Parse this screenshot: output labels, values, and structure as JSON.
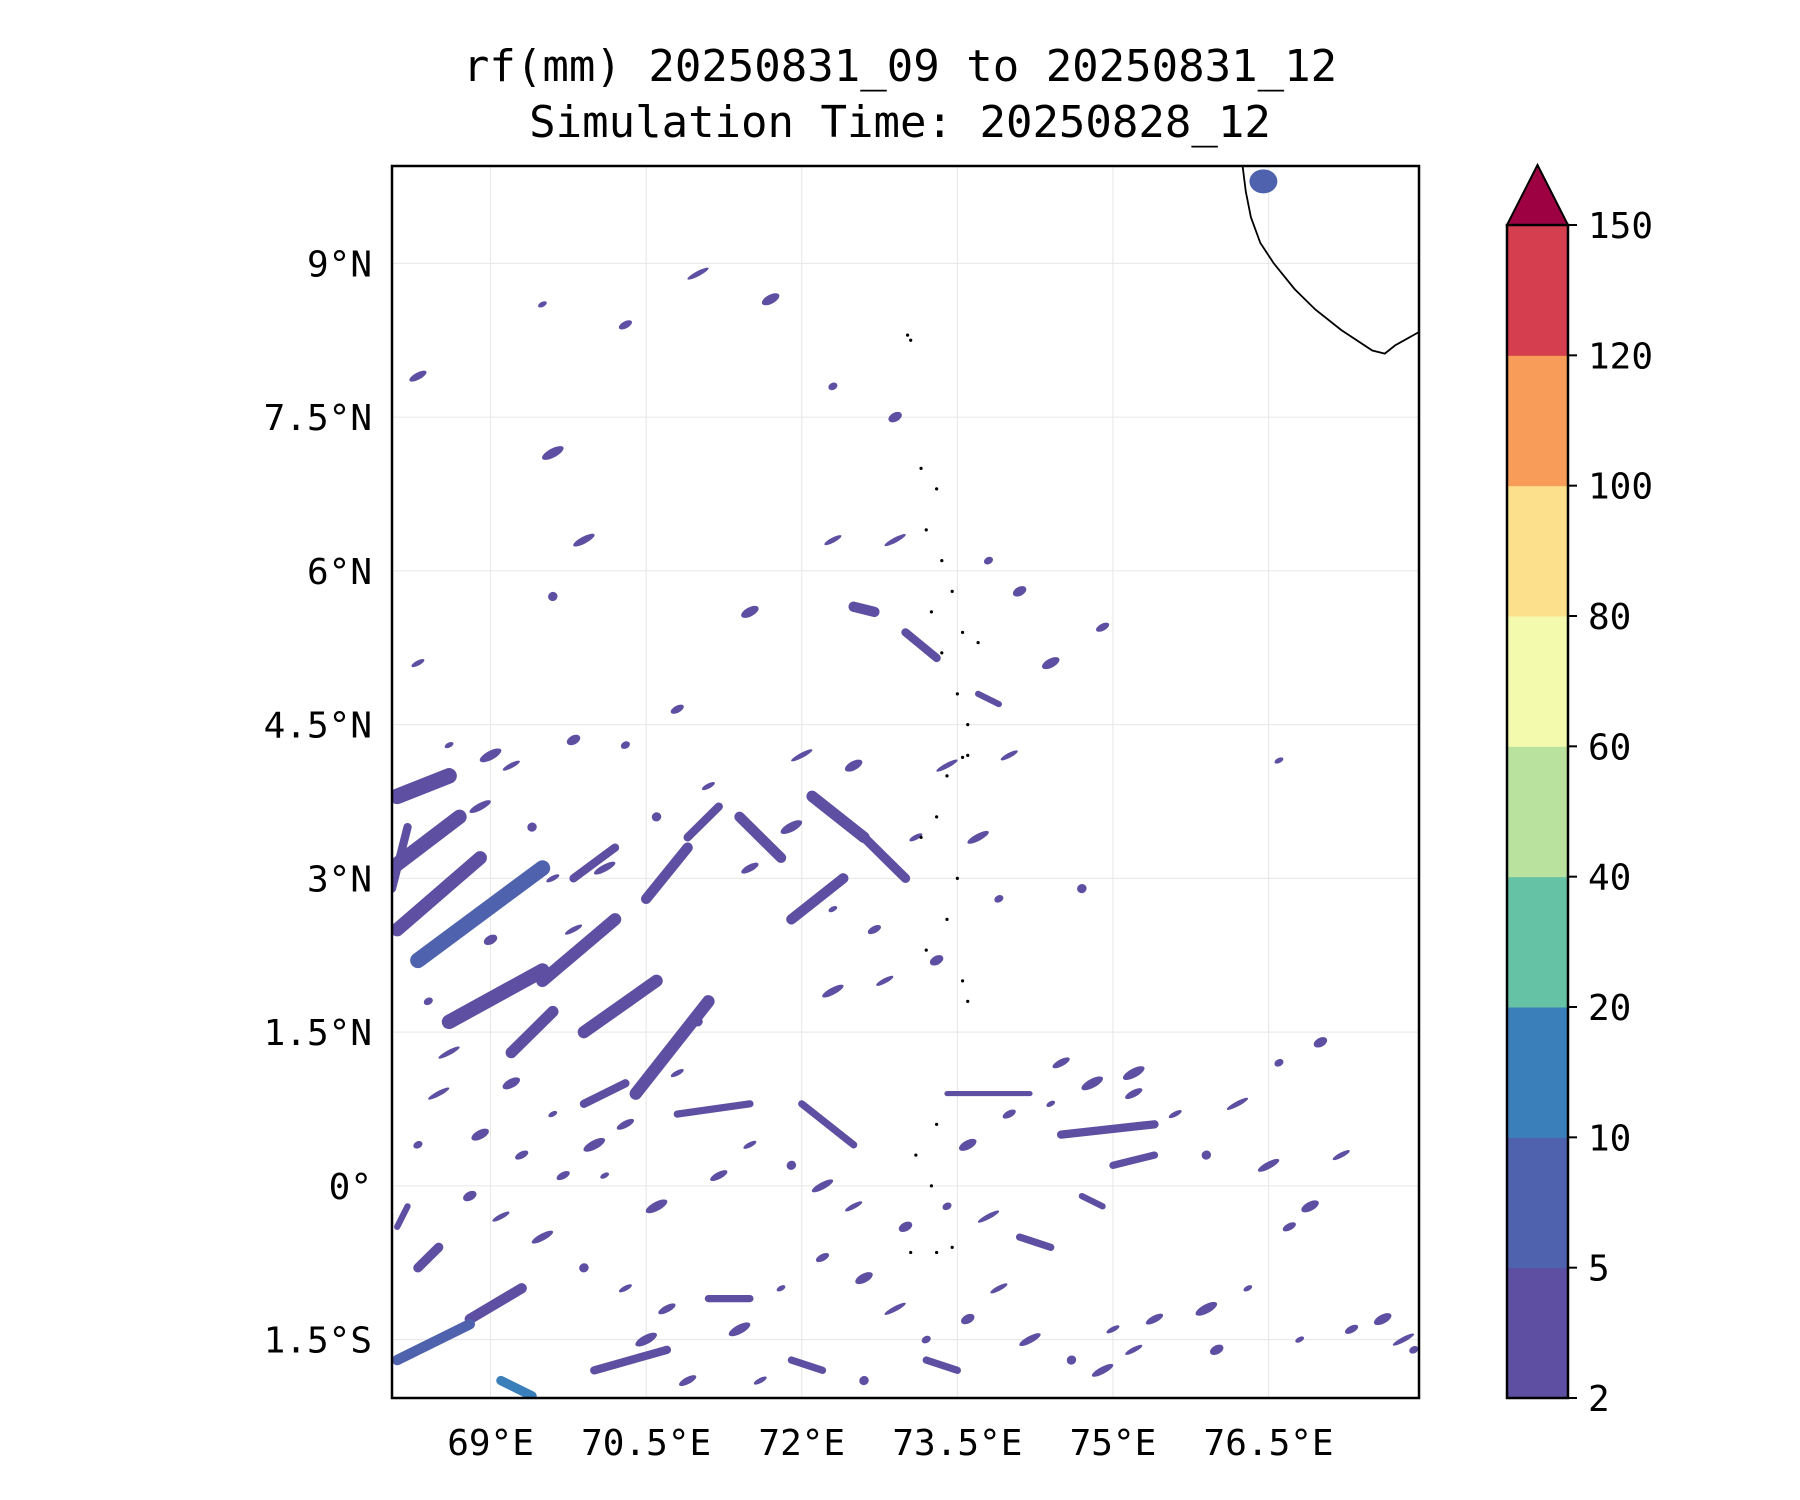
{
  "title": {
    "line1": "rf(mm) 20250831_09 to 20250831_12",
    "line2": "Simulation Time: 20250828_12"
  },
  "map": {
    "lon_range": [
      68.05,
      77.95
    ],
    "lat_range": [
      -2.07,
      9.95
    ],
    "lon_ticks": [
      {
        "value": 69.0,
        "label": "69°E"
      },
      {
        "value": 70.5,
        "label": "70.5°E"
      },
      {
        "value": 72.0,
        "label": "72°E"
      },
      {
        "value": 73.5,
        "label": "73.5°E"
      },
      {
        "value": 75.0,
        "label": "75°E"
      },
      {
        "value": 76.5,
        "label": "76.5°E"
      }
    ],
    "lat_ticks": [
      {
        "value": 9.0,
        "label": "9°N"
      },
      {
        "value": 7.5,
        "label": "7.5°N"
      },
      {
        "value": 6.0,
        "label": "6°N"
      },
      {
        "value": 4.5,
        "label": "4.5°N"
      },
      {
        "value": 3.0,
        "label": "3°N"
      },
      {
        "value": 1.5,
        "label": "1.5°N"
      },
      {
        "value": 0.0,
        "label": "0°"
      },
      {
        "value": -1.5,
        "label": "1.5°S"
      }
    ],
    "gridlines": true,
    "coastline_india": [
      [
        76.25,
        9.95
      ],
      [
        76.28,
        9.7
      ],
      [
        76.33,
        9.45
      ],
      [
        76.42,
        9.2
      ],
      [
        76.55,
        9.0
      ],
      [
        76.75,
        8.75
      ],
      [
        76.95,
        8.55
      ],
      [
        77.2,
        8.35
      ],
      [
        77.5,
        8.15
      ],
      [
        77.62,
        8.12
      ],
      [
        77.72,
        8.2
      ],
      [
        77.95,
        8.33
      ]
    ],
    "islands": [
      [
        73.02,
        8.3
      ],
      [
        73.05,
        8.25
      ],
      [
        73.6,
        4.2
      ],
      [
        73.55,
        4.18
      ],
      [
        73.15,
        7.0
      ],
      [
        73.3,
        6.8
      ],
      [
        73.2,
        6.4
      ],
      [
        73.35,
        6.1
      ],
      [
        73.45,
        5.8
      ],
      [
        73.25,
        5.6
      ],
      [
        73.35,
        5.2
      ],
      [
        73.55,
        5.4
      ],
      [
        73.7,
        5.3
      ],
      [
        73.5,
        4.8
      ],
      [
        73.6,
        4.5
      ],
      [
        73.4,
        4.0
      ],
      [
        73.3,
        3.6
      ],
      [
        73.15,
        3.4
      ],
      [
        73.5,
        3.0
      ],
      [
        73.4,
        2.6
      ],
      [
        73.2,
        2.3
      ],
      [
        73.55,
        2.0
      ],
      [
        73.6,
        1.8
      ],
      [
        73.3,
        0.6
      ],
      [
        73.1,
        0.3
      ],
      [
        73.25,
        0.0
      ],
      [
        73.45,
        -0.6
      ],
      [
        73.05,
        -0.65
      ],
      [
        73.3,
        -0.65
      ]
    ]
  },
  "chart_data": {
    "type": "heatmap",
    "variable": "rf(mm)",
    "levels": [
      2,
      5,
      10,
      20,
      40,
      60,
      80,
      100,
      120,
      150
    ],
    "level_labels": [
      "2",
      "5",
      "10",
      "20",
      "40",
      "60",
      "80",
      "100",
      "120",
      "150"
    ],
    "colors": [
      "#5e4fa2",
      "#4f62ad",
      "#3a7fba",
      "#66c2a5",
      "#b9e29e",
      "#f3faad",
      "#fde08b",
      "#f89d59",
      "#d53e4f",
      "#9e0142"
    ],
    "extend": "max",
    "rain_bands": [
      {
        "from": [
          68.05,
          3.1
        ],
        "to": [
          68.7,
          3.6
        ],
        "w": 0.14,
        "level": 0
      },
      {
        "from": [
          68.1,
          2.5
        ],
        "to": [
          68.9,
          3.2
        ],
        "w": 0.13,
        "level": 0
      },
      {
        "from": [
          68.3,
          2.2
        ],
        "to": [
          69.5,
          3.1
        ],
        "w": 0.15,
        "level": 1
      },
      {
        "from": [
          68.1,
          3.8
        ],
        "to": [
          68.6,
          4.0
        ],
        "w": 0.15,
        "level": 0
      },
      {
        "from": [
          68.05,
          2.9
        ],
        "to": [
          68.2,
          3.5
        ],
        "w": 0.08,
        "level": 0
      },
      {
        "from": [
          68.6,
          1.6
        ],
        "to": [
          69.5,
          2.1
        ],
        "w": 0.14,
        "level": 0
      },
      {
        "from": [
          69.5,
          2.0
        ],
        "to": [
          70.2,
          2.6
        ],
        "w": 0.12,
        "level": 0
      },
      {
        "from": [
          69.2,
          1.3
        ],
        "to": [
          69.6,
          1.7
        ],
        "w": 0.11,
        "level": 0
      },
      {
        "from": [
          69.9,
          1.5
        ],
        "to": [
          70.6,
          2.0
        ],
        "w": 0.12,
        "level": 0
      },
      {
        "from": [
          70.4,
          0.9
        ],
        "to": [
          71.1,
          1.8
        ],
        "w": 0.12,
        "level": 0
      },
      {
        "from": [
          69.8,
          3.0
        ],
        "to": [
          70.2,
          3.3
        ],
        "w": 0.08,
        "level": 0
      },
      {
        "from": [
          70.5,
          2.8
        ],
        "to": [
          70.9,
          3.3
        ],
        "w": 0.1,
        "level": 0
      },
      {
        "from": [
          70.9,
          3.4
        ],
        "to": [
          71.2,
          3.7
        ],
        "w": 0.08,
        "level": 0
      },
      {
        "from": [
          71.4,
          3.6
        ],
        "to": [
          71.8,
          3.2
        ],
        "w": 0.1,
        "level": 0
      },
      {
        "from": [
          71.9,
          2.6
        ],
        "to": [
          72.4,
          3.0
        ],
        "w": 0.1,
        "level": 0
      },
      {
        "from": [
          72.1,
          3.8
        ],
        "to": [
          72.6,
          3.4
        ],
        "w": 0.11,
        "level": 0
      },
      {
        "from": [
          72.6,
          3.4
        ],
        "to": [
          73.0,
          3.0
        ],
        "w": 0.09,
        "level": 0
      },
      {
        "from": [
          72.5,
          5.65
        ],
        "to": [
          72.7,
          5.6
        ],
        "w": 0.1,
        "level": 0
      },
      {
        "from": [
          73.0,
          5.4
        ],
        "to": [
          73.3,
          5.15
        ],
        "w": 0.08,
        "level": 0
      },
      {
        "from": [
          73.7,
          4.8
        ],
        "to": [
          73.9,
          4.7
        ],
        "w": 0.06,
        "level": 0
      },
      {
        "from": [
          68.8,
          -1.3
        ],
        "to": [
          69.3,
          -1.0
        ],
        "w": 0.1,
        "level": 0
      },
      {
        "from": [
          68.1,
          -1.7
        ],
        "to": [
          68.8,
          -1.35
        ],
        "w": 0.1,
        "level": 1
      },
      {
        "from": [
          68.3,
          -0.8
        ],
        "to": [
          68.5,
          -0.6
        ],
        "w": 0.09,
        "level": 0
      },
      {
        "from": [
          68.1,
          -0.4
        ],
        "to": [
          68.2,
          -0.2
        ],
        "w": 0.06,
        "level": 0
      },
      {
        "from": [
          69.9,
          0.8
        ],
        "to": [
          70.3,
          1.0
        ],
        "w": 0.08,
        "level": 0
      },
      {
        "from": [
          70.8,
          0.7
        ],
        "to": [
          71.5,
          0.8
        ],
        "w": 0.07,
        "level": 0
      },
      {
        "from": [
          72.0,
          0.8
        ],
        "to": [
          72.5,
          0.4
        ],
        "w": 0.07,
        "level": 0
      },
      {
        "from": [
          73.4,
          0.9
        ],
        "to": [
          74.2,
          0.9
        ],
        "w": 0.05,
        "level": 0
      },
      {
        "from": [
          74.5,
          0.5
        ],
        "to": [
          75.4,
          0.6
        ],
        "w": 0.08,
        "level": 0
      },
      {
        "from": [
          75.0,
          0.2
        ],
        "to": [
          75.4,
          0.3
        ],
        "w": 0.07,
        "level": 0
      },
      {
        "from": [
          74.7,
          -0.1
        ],
        "to": [
          74.9,
          -0.2
        ],
        "w": 0.06,
        "level": 0
      },
      {
        "from": [
          74.1,
          -0.5
        ],
        "to": [
          74.4,
          -0.6
        ],
        "w": 0.07,
        "level": 0
      },
      {
        "from": [
          73.2,
          -1.7
        ],
        "to": [
          73.5,
          -1.8
        ],
        "w": 0.07,
        "level": 0
      },
      {
        "from": [
          71.9,
          -1.7
        ],
        "to": [
          72.2,
          -1.8
        ],
        "w": 0.07,
        "level": 0
      },
      {
        "from": [
          71.1,
          -1.1
        ],
        "to": [
          71.5,
          -1.1
        ],
        "w": 0.07,
        "level": 0
      },
      {
        "from": [
          70.0,
          -1.8
        ],
        "to": [
          70.7,
          -1.6
        ],
        "w": 0.08,
        "level": 0
      },
      {
        "from": [
          69.1,
          -1.9
        ],
        "to": [
          69.4,
          -2.05
        ],
        "w": 0.09,
        "level": 2
      }
    ],
    "rain_cells": [
      [
        76.6,
        4.15
      ],
      [
        74.9,
        5.45
      ],
      [
        74.4,
        5.1
      ],
      [
        73.4,
        4.1
      ],
      [
        73.9,
        2.8
      ],
      [
        73.3,
        2.2
      ],
      [
        72.8,
        2.0
      ],
      [
        72.3,
        1.9
      ],
      [
        71.0,
        1.6
      ],
      [
        70.8,
        1.1
      ],
      [
        70.3,
        0.6
      ],
      [
        70.0,
        0.4
      ],
      [
        69.6,
        0.7
      ],
      [
        69.3,
        0.3
      ],
      [
        68.9,
        0.5
      ],
      [
        68.5,
        0.9
      ],
      [
        68.3,
        0.4
      ],
      [
        68.8,
        -0.1
      ],
      [
        69.1,
        -0.3
      ],
      [
        69.5,
        -0.5
      ],
      [
        69.9,
        -0.8
      ],
      [
        70.3,
        -1.0
      ],
      [
        70.7,
        -1.2
      ],
      [
        71.4,
        -1.4
      ],
      [
        71.8,
        -1.0
      ],
      [
        72.2,
        -0.7
      ],
      [
        72.6,
        -0.9
      ],
      [
        72.9,
        -1.2
      ],
      [
        73.2,
        -1.5
      ],
      [
        73.6,
        -1.3
      ],
      [
        73.9,
        -1.0
      ],
      [
        74.2,
        -1.5
      ],
      [
        74.6,
        -1.7
      ],
      [
        75.0,
        -1.4
      ],
      [
        75.4,
        -1.3
      ],
      [
        75.9,
        -1.2
      ],
      [
        76.3,
        -1.0
      ],
      [
        76.7,
        -0.4
      ],
      [
        76.9,
        -0.2
      ],
      [
        76.2,
        0.8
      ],
      [
        76.6,
        1.2
      ],
      [
        77.0,
        1.4
      ],
      [
        77.2,
        0.3
      ],
      [
        76.5,
        0.2
      ],
      [
        75.9,
        0.3
      ],
      [
        75.6,
        0.7
      ],
      [
        75.2,
        0.9
      ],
      [
        74.8,
        1.0
      ],
      [
        74.4,
        0.8
      ],
      [
        74.0,
        0.7
      ],
      [
        73.6,
        0.4
      ],
      [
        73.8,
        -0.3
      ],
      [
        73.4,
        -0.2
      ],
      [
        73.0,
        -0.4
      ],
      [
        72.5,
        -0.2
      ],
      [
        72.2,
        0.0
      ],
      [
        71.9,
        0.2
      ],
      [
        71.5,
        0.4
      ],
      [
        71.2,
        0.1
      ],
      [
        70.6,
        -0.2
      ],
      [
        70.1,
        0.1
      ],
      [
        69.7,
        0.1
      ],
      [
        69.2,
        1.0
      ],
      [
        68.6,
        1.3
      ],
      [
        68.4,
        1.8
      ],
      [
        69.0,
        2.4
      ],
      [
        69.8,
        2.5
      ],
      [
        70.1,
        3.1
      ],
      [
        70.6,
        3.6
      ],
      [
        71.1,
        3.9
      ],
      [
        71.5,
        3.1
      ],
      [
        71.9,
        3.5
      ],
      [
        72.3,
        2.7
      ],
      [
        72.7,
        2.5
      ],
      [
        72.5,
        4.1
      ],
      [
        72.0,
        4.2
      ],
      [
        70.3,
        4.3
      ],
      [
        69.8,
        4.35
      ],
      [
        69.2,
        4.1
      ],
      [
        68.9,
        3.7
      ],
      [
        69.4,
        3.5
      ],
      [
        69.6,
        3.0
      ],
      [
        68.3,
        3.9
      ],
      [
        69.0,
        4.2
      ],
      [
        68.6,
        4.3
      ],
      [
        70.8,
        4.65
      ],
      [
        71.5,
        5.6
      ],
      [
        72.9,
        6.3
      ],
      [
        73.8,
        6.1
      ],
      [
        74.1,
        5.8
      ],
      [
        72.3,
        6.3
      ],
      [
        69.9,
        6.3
      ],
      [
        69.6,
        5.75
      ],
      [
        68.3,
        5.1
      ],
      [
        68.3,
        7.9
      ],
      [
        69.6,
        7.15
      ],
      [
        69.5,
        8.6
      ],
      [
        70.3,
        8.4
      ],
      [
        71.7,
        8.65
      ],
      [
        71.0,
        8.9
      ],
      [
        72.3,
        7.8
      ],
      [
        72.9,
        7.5
      ],
      [
        74.0,
        4.2
      ],
      [
        73.7,
        3.4
      ],
      [
        74.7,
        2.9
      ],
      [
        73.1,
        3.4
      ],
      [
        74.5,
        1.2
      ],
      [
        75.2,
        1.1
      ],
      [
        76.8,
        -1.5
      ],
      [
        77.3,
        -1.4
      ],
      [
        77.6,
        -1.3
      ],
      [
        77.8,
        -1.5
      ],
      [
        77.9,
        -1.6
      ],
      [
        76.0,
        -1.6
      ],
      [
        75.2,
        -1.6
      ],
      [
        74.9,
        -1.8
      ],
      [
        72.6,
        -1.9
      ],
      [
        71.6,
        -1.9
      ],
      [
        70.9,
        -1.9
      ],
      [
        70.5,
        -1.5
      ]
    ],
    "top_cell": [
      76.45,
      9.8
    ]
  }
}
